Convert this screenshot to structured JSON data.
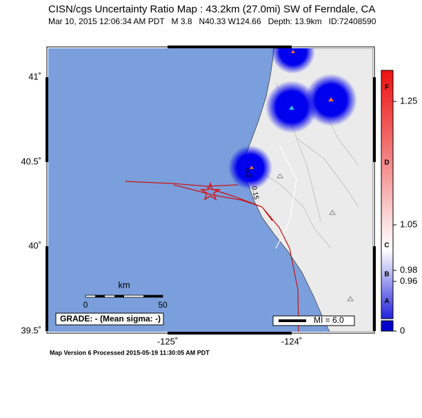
{
  "header": {
    "title": "CISN/cgs Uncertainty Ratio Map : 43.2km (27.0mi) SW of Ferndale, CA",
    "subtitle": "Mar 10, 2015 12:06:34 AM PDT   M 3.8   N40.33 W124.66   Depth: 13.9km   ID:72408590"
  },
  "map": {
    "lat_labels": [
      "41˚",
      "40.5˚",
      "40˚",
      "39.5˚"
    ],
    "lon_labels": [
      "-125˚",
      "-124˚"
    ],
    "contour_labels": [
      "0.2",
      "0.15"
    ],
    "scale_bar": {
      "unit": "km",
      "start": "0",
      "end": "50"
    },
    "grade": "GRADE: - (Mean sigma: -)",
    "mi_legend": "MI = 6.0"
  },
  "colorbar": {
    "letters": [
      "F",
      "D",
      "C",
      "B",
      "A"
    ],
    "labels": [
      "1.25",
      "1.05",
      "0.98",
      "0.96",
      "0"
    ]
  },
  "footer": "Map Version 6 Processed 2015-05-19 11:30:05 AM PDT"
}
